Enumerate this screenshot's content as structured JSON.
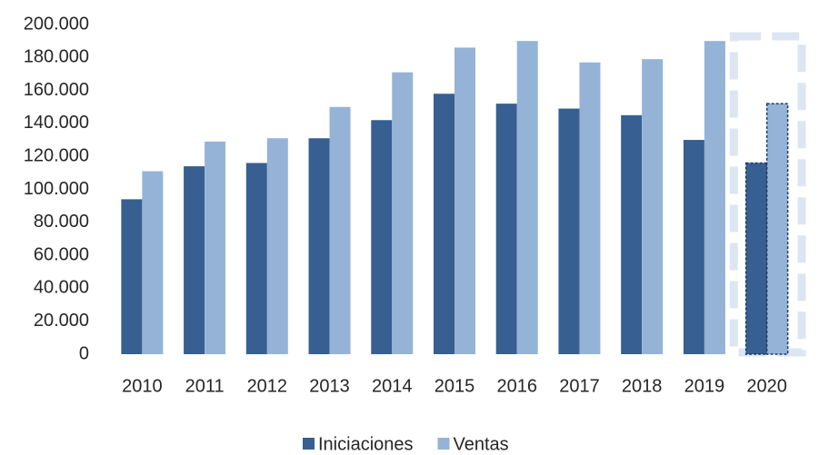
{
  "chart_data": {
    "type": "bar",
    "categories": [
      "2010",
      "2011",
      "2012",
      "2013",
      "2014",
      "2015",
      "2016",
      "2017",
      "2018",
      "2019",
      "2020"
    ],
    "series": [
      {
        "name": "Iniciaciones",
        "color": "#375f91",
        "values": [
          94000,
          114000,
          116000,
          131000,
          142000,
          158000,
          152000,
          149000,
          145000,
          130000,
          116000
        ]
      },
      {
        "name": "Ventas",
        "color": "#95b3d7",
        "values": [
          111000,
          129000,
          131000,
          150000,
          171000,
          186000,
          190000,
          177000,
          179000,
          190000,
          152000
        ]
      }
    ],
    "ylim": [
      0,
      200000
    ],
    "yticks": [
      0,
      {
        "value": 20000,
        "label": "20.000"
      },
      {
        "value": 40000,
        "label": "40.000"
      },
      {
        "value": 60000,
        "label": "60.000"
      },
      {
        "value": 80000,
        "label": "80.000"
      },
      {
        "value": 100000,
        "label": "100.000"
      },
      {
        "value": 120000,
        "label": "120.000"
      },
      {
        "value": 140000,
        "label": "140.000"
      },
      {
        "value": 160000,
        "label": "160.000"
      },
      {
        "value": 180000,
        "label": "180.000"
      },
      {
        "value": 200000,
        "label": "200.000"
      }
    ],
    "grid": false,
    "legend": "bottom"
  }
}
